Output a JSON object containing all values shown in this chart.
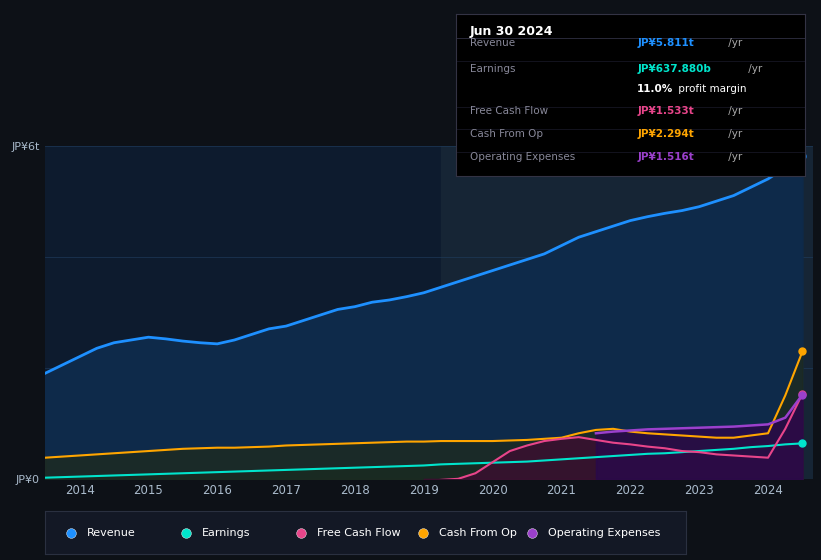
{
  "bg_color": "#0d1117",
  "plot_bg_color": "#0d1b2e",
  "ylabel_top": "JP¥6t",
  "ylabel_bottom": "JP¥0",
  "x_years": [
    2013.5,
    2013.75,
    2014.0,
    2014.25,
    2014.5,
    2014.75,
    2015.0,
    2015.25,
    2015.5,
    2015.75,
    2016.0,
    2016.25,
    2016.5,
    2016.75,
    2017.0,
    2017.25,
    2017.5,
    2017.75,
    2018.0,
    2018.25,
    2018.5,
    2018.75,
    2019.0,
    2019.25,
    2019.5,
    2019.75,
    2020.0,
    2020.25,
    2020.5,
    2020.75,
    2021.0,
    2021.25,
    2021.5,
    2021.75,
    2022.0,
    2022.25,
    2022.5,
    2022.75,
    2023.0,
    2023.25,
    2023.5,
    2023.75,
    2024.0,
    2024.25,
    2024.5
  ],
  "revenue": [
    1.9,
    2.05,
    2.2,
    2.35,
    2.45,
    2.5,
    2.55,
    2.52,
    2.48,
    2.45,
    2.43,
    2.5,
    2.6,
    2.7,
    2.75,
    2.85,
    2.95,
    3.05,
    3.1,
    3.18,
    3.22,
    3.28,
    3.35,
    3.45,
    3.55,
    3.65,
    3.75,
    3.85,
    3.95,
    4.05,
    4.2,
    4.35,
    4.45,
    4.55,
    4.65,
    4.72,
    4.78,
    4.83,
    4.9,
    5.0,
    5.1,
    5.25,
    5.4,
    5.6,
    5.811
  ],
  "earnings": [
    0.02,
    0.03,
    0.04,
    0.05,
    0.06,
    0.07,
    0.08,
    0.09,
    0.1,
    0.11,
    0.12,
    0.13,
    0.14,
    0.15,
    0.16,
    0.17,
    0.18,
    0.19,
    0.2,
    0.21,
    0.22,
    0.23,
    0.24,
    0.26,
    0.27,
    0.28,
    0.29,
    0.3,
    0.31,
    0.33,
    0.35,
    0.37,
    0.39,
    0.41,
    0.43,
    0.45,
    0.46,
    0.48,
    0.5,
    0.52,
    0.54,
    0.57,
    0.59,
    0.62,
    0.638
  ],
  "cash_from_op": [
    0.38,
    0.4,
    0.42,
    0.44,
    0.46,
    0.48,
    0.5,
    0.52,
    0.54,
    0.55,
    0.56,
    0.56,
    0.57,
    0.58,
    0.6,
    0.61,
    0.62,
    0.63,
    0.64,
    0.65,
    0.66,
    0.67,
    0.67,
    0.68,
    0.68,
    0.68,
    0.68,
    0.69,
    0.7,
    0.72,
    0.74,
    0.82,
    0.88,
    0.9,
    0.85,
    0.82,
    0.8,
    0.78,
    0.76,
    0.74,
    0.74,
    0.78,
    0.82,
    1.5,
    2.294
  ],
  "free_cash_flow": [
    null,
    null,
    null,
    null,
    null,
    null,
    null,
    null,
    null,
    null,
    null,
    null,
    null,
    null,
    null,
    null,
    null,
    null,
    null,
    null,
    null,
    null,
    -0.04,
    -0.02,
    0.0,
    0.1,
    0.3,
    0.5,
    0.6,
    0.68,
    0.72,
    0.75,
    0.7,
    0.65,
    0.62,
    0.58,
    0.55,
    0.5,
    0.48,
    0.44,
    0.42,
    0.4,
    0.38,
    0.9,
    1.533
  ],
  "operating_expenses": [
    null,
    null,
    null,
    null,
    null,
    null,
    null,
    null,
    null,
    null,
    null,
    null,
    null,
    null,
    null,
    null,
    null,
    null,
    null,
    null,
    null,
    null,
    null,
    null,
    null,
    null,
    null,
    null,
    null,
    null,
    null,
    null,
    0.82,
    0.85,
    0.87,
    0.89,
    0.9,
    0.91,
    0.92,
    0.93,
    0.94,
    0.96,
    0.98,
    1.1,
    1.516
  ],
  "revenue_color": "#1e90ff",
  "revenue_fill": "#0e2a4a",
  "earnings_color": "#00e5cc",
  "earnings_fill": "#0a2a2a",
  "cash_from_op_color": "#ffa500",
  "cash_from_op_fill": "#2a1e00",
  "free_cash_flow_color": "#e8458a",
  "free_cash_flow_fill": "#3a1030",
  "operating_expenses_color": "#9b40cc",
  "operating_expenses_fill": "#2a0a4a",
  "grid_color": "#1e3a5a",
  "forecast_fill": "#162535",
  "forecast_start": 2019.25,
  "ylim": [
    0,
    6.0
  ],
  "xlim": [
    2013.5,
    2024.65
  ],
  "year_ticks": [
    2014,
    2015,
    2016,
    2017,
    2018,
    2019,
    2020,
    2021,
    2022,
    2023,
    2024
  ],
  "legend_items": [
    {
      "label": "Revenue",
      "color": "#1e90ff"
    },
    {
      "label": "Earnings",
      "color": "#00e5cc"
    },
    {
      "label": "Free Cash Flow",
      "color": "#e8458a"
    },
    {
      "label": "Cash From Op",
      "color": "#ffa500"
    },
    {
      "label": "Operating Expenses",
      "color": "#9b40cc"
    }
  ],
  "table_title": "Jun 30 2024",
  "table_rows": [
    {
      "label": "Revenue",
      "value": "JP¥5.811t /yr",
      "value_color": "#1e90ff",
      "label_color": "#888899"
    },
    {
      "label": "Earnings",
      "value": "JP¥637.880b /yr",
      "value_color": "#00e5cc",
      "label_color": "#888899"
    },
    {
      "label": "",
      "value": "11.0% profit margin",
      "value_color": "white",
      "label_color": "white",
      "bold_prefix": "11.0%"
    },
    {
      "label": "Free Cash Flow",
      "value": "JP¥1.533t /yr",
      "value_color": "#e8458a",
      "label_color": "#888899"
    },
    {
      "label": "Cash From Op",
      "value": "JP¥2.294t /yr",
      "value_color": "#ffa500",
      "label_color": "#888899"
    },
    {
      "label": "Operating Expenses",
      "value": "JP¥1.516t /yr",
      "value_color": "#9b40cc",
      "label_color": "#888899"
    }
  ]
}
